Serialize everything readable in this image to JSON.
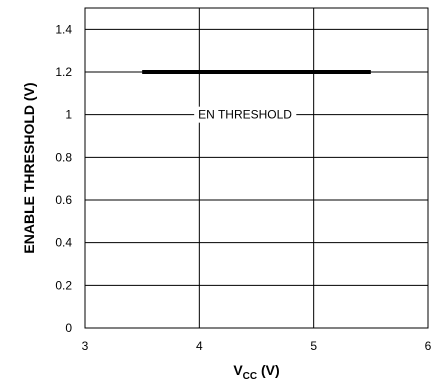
{
  "chart_data": {
    "type": "line",
    "title": "",
    "xlabel_main": "V",
    "xlabel_sub": "CC",
    "xlabel_unit": " (V)",
    "ylabel": "ENABLE THRESHOLD (V)",
    "xlim": [
      3,
      6
    ],
    "ylim": [
      0,
      1.5
    ],
    "xticks": [
      3,
      4,
      5,
      6
    ],
    "xtick_labels": [
      "3",
      "4",
      "5",
      "6"
    ],
    "yticks": [
      0,
      0.2,
      0.4,
      0.6,
      0.8,
      1.0,
      1.2,
      1.4
    ],
    "ytick_labels": [
      "0",
      "0.2",
      "0.4",
      "0.6",
      "0.8",
      "1",
      "1.2",
      "1.4"
    ],
    "grid": true,
    "series": [
      {
        "name": "EN THRESHOLD",
        "x": [
          3.5,
          5.5
        ],
        "y": [
          1.2,
          1.2
        ],
        "color": "#000000"
      }
    ],
    "annotations": [
      {
        "text": "EN THRESHOLD",
        "x": 4.4,
        "y": 1.0
      }
    ]
  }
}
